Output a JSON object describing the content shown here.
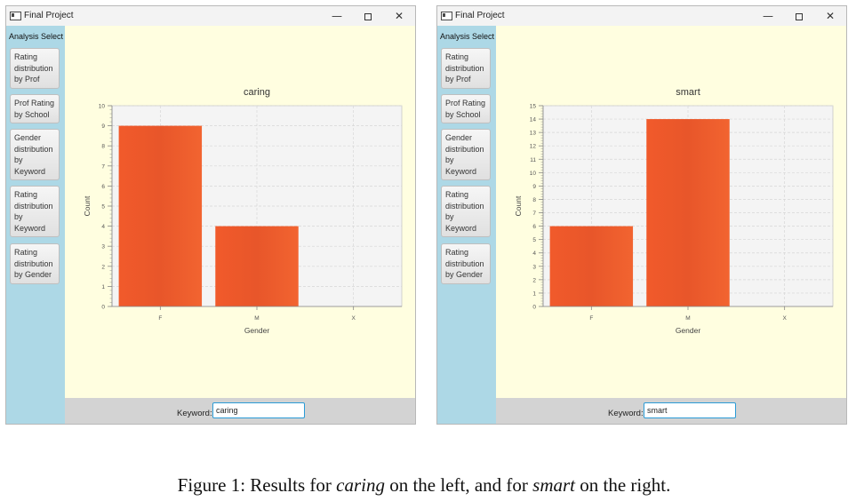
{
  "windows": [
    {
      "title": "Final Project",
      "sidebar_title": "Analysis Select",
      "buttons": [
        "Rating\ndistribution\nby Prof",
        "Prof Rating\nby School",
        "Gender\ndistribution\nby\nKeyword",
        "Rating\ndistribution\nby\nKeyword",
        "Rating\ndistribution\nby Gender"
      ],
      "keyword_label": "Keyword:",
      "keyword_value": "caring"
    },
    {
      "title": "Final Project",
      "sidebar_title": "Analysis Select",
      "buttons": [
        "Rating\ndistribution\nby Prof",
        "Prof Rating\nby School",
        "Gender\ndistribution\nby\nKeyword",
        "Rating\ndistribution\nby\nKeyword",
        "Rating\ndistribution\nby Gender"
      ],
      "keyword_label": "Keyword:",
      "keyword_value": "smart"
    }
  ],
  "chart_data": [
    {
      "type": "bar",
      "title": "caring",
      "xlabel": "Gender",
      "ylabel": "Count",
      "categories": [
        "F",
        "M",
        "X"
      ],
      "values": [
        9,
        4,
        0
      ],
      "ylim": [
        0,
        10
      ],
      "yticks": [
        0,
        1,
        2,
        3,
        4,
        5,
        6,
        7,
        8,
        9,
        10
      ],
      "grid": true,
      "bar_color": "#f05a28"
    },
    {
      "type": "bar",
      "title": "smart",
      "xlabel": "Gender",
      "ylabel": "Count",
      "categories": [
        "F",
        "M",
        "X"
      ],
      "values": [
        6,
        14,
        0
      ],
      "ylim": [
        0,
        15
      ],
      "yticks": [
        0,
        1,
        2,
        3,
        4,
        5,
        6,
        7,
        8,
        9,
        10,
        11,
        12,
        13,
        14,
        15
      ],
      "grid": true,
      "bar_color": "#f05a28"
    }
  ],
  "caption": {
    "prefix": "Figure 1: Results for ",
    "kw1": "caring",
    "middle": " on the left, and for ",
    "kw2": "smart",
    "suffix": " on the right."
  }
}
